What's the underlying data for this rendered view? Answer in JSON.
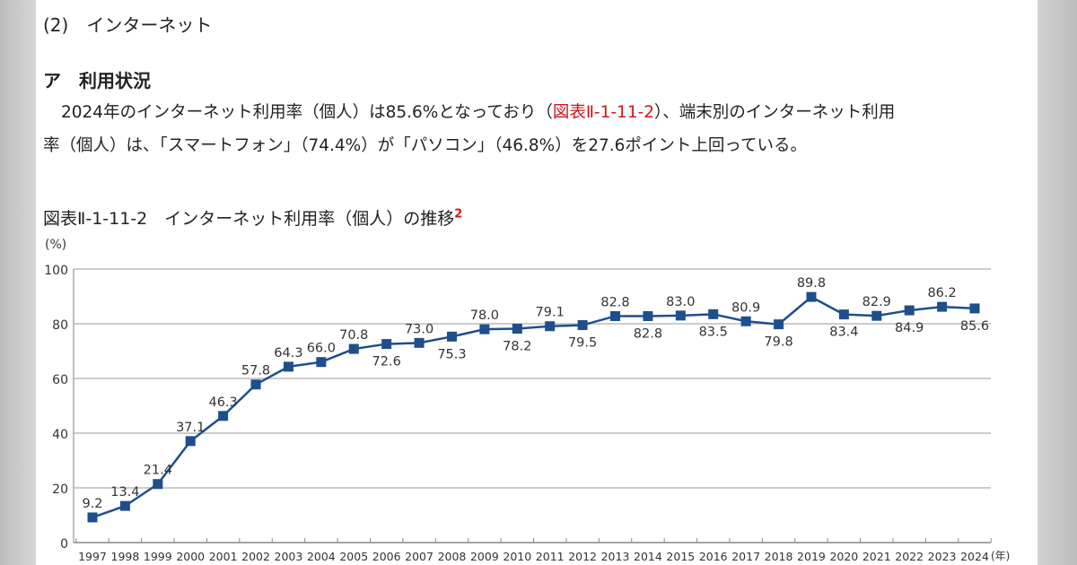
{
  "section_heading": "(2)　インターネット",
  "subsection_heading": "ア　利用状況",
  "paragraph": {
    "line1_before": "2024年のインターネット利用率（個人）は85.6%となっており（",
    "line1_link": "図表Ⅱ-1-11-2",
    "line1_after": "）、端末別のインターネット利用",
    "line2": "率（個人）は、「スマートフォン」（74.4%）が「パソコン」（46.8%）を27.6ポイント上回っている。"
  },
  "figure_caption": "図表Ⅱ-1-11-2　インターネット利用率（個人）の推移",
  "figure_footnote": "2",
  "colors": {
    "series": "#1f4e8c",
    "link": "#d0161b",
    "grid": "#cccccc"
  },
  "chart_data": {
    "type": "line",
    "ylabel": "(%)",
    "xlabel": "(年)",
    "ylim": [
      0,
      100
    ],
    "yticks": [
      0,
      20,
      40,
      60,
      80,
      100
    ],
    "grid": true,
    "marker": "square",
    "categories": [
      "1997",
      "1998",
      "1999",
      "2000",
      "2001",
      "2002",
      "2003",
      "2004",
      "2005",
      "2006",
      "2007",
      "2008",
      "2009",
      "2010",
      "2011",
      "2012",
      "2013",
      "2014",
      "2015",
      "2016",
      "2017",
      "2018",
      "2019",
      "2020",
      "2021",
      "2022",
      "2023",
      "2024"
    ],
    "values": [
      9.2,
      13.4,
      21.4,
      37.1,
      46.3,
      57.8,
      64.3,
      66.0,
      70.8,
      72.6,
      73.0,
      75.3,
      78.0,
      78.2,
      79.1,
      79.5,
      82.8,
      82.8,
      83.0,
      83.5,
      80.9,
      79.8,
      89.8,
      83.4,
      82.9,
      84.9,
      86.2,
      85.6
    ],
    "data_labels": [
      "9.2",
      "13.4",
      "21.4",
      "37.1",
      "46.3",
      "57.8",
      "64.3",
      "66.0",
      "70.8",
      "72.6",
      "73.0",
      "75.3",
      "78.0",
      "78.2",
      "79.1",
      "79.5",
      "82.8",
      "82.8",
      "83.0",
      "83.5",
      "80.9",
      "79.8",
      "89.8",
      "83.4",
      "82.9",
      "84.9",
      "86.2",
      "85.6"
    ],
    "label_below": [
      false,
      false,
      false,
      false,
      false,
      false,
      false,
      false,
      false,
      true,
      false,
      true,
      false,
      true,
      false,
      true,
      false,
      true,
      false,
      true,
      false,
      true,
      false,
      true,
      false,
      true,
      false,
      true
    ]
  }
}
